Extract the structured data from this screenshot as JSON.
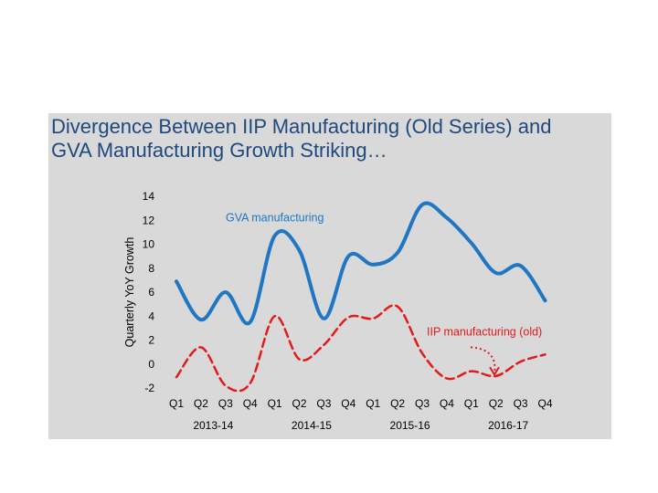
{
  "chart_data": {
    "type": "line",
    "title_lines": [
      "Divergence Between IIP Manufacturing (Old Series) and",
      "GVA Manufacturing Growth Striking…"
    ],
    "ylabel": "Quarterly YoY Growth",
    "ylim": [
      -2,
      14
    ],
    "yticks": [
      -2,
      0,
      2,
      4,
      6,
      8,
      10,
      12,
      14
    ],
    "categories": [
      "Q1",
      "Q2",
      "Q3",
      "Q4",
      "Q1",
      "Q2",
      "Q3",
      "Q4",
      "Q1",
      "Q2",
      "Q3",
      "Q4",
      "Q1",
      "Q2",
      "Q3",
      "Q4"
    ],
    "year_groups": [
      "2013-14",
      "2014-15",
      "2015-16",
      "2016-17"
    ],
    "series": [
      {
        "name": "GVA manufacturing",
        "color": "#1f77c4",
        "dash": false,
        "values": [
          6.9,
          3.7,
          6.0,
          3.5,
          10.7,
          9.5,
          3.8,
          9.0,
          8.3,
          9.3,
          13.3,
          12.2,
          10.1,
          7.6,
          8.2,
          5.3
        ]
      },
      {
        "name": "IIP manufacturing (old)",
        "color": "#e31a1c",
        "dash": true,
        "values": [
          -1.1,
          1.4,
          -1.8,
          -1.6,
          4.0,
          0.4,
          1.6,
          3.9,
          3.8,
          4.8,
          0.9,
          -1.2,
          -0.6,
          -1.0,
          0.2,
          0.8
        ]
      }
    ]
  }
}
